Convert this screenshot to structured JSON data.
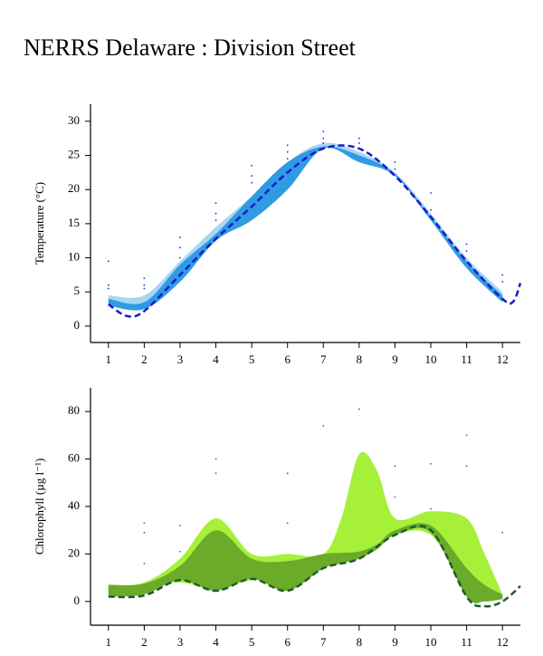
{
  "title": "NERRS Delaware : Division Street",
  "chart_data": [
    {
      "type": "line",
      "ylabel": "Temperature (°C)",
      "xlim": [
        0.5,
        12.5
      ],
      "xticks": [
        1,
        2,
        3,
        4,
        5,
        6,
        7,
        8,
        9,
        10,
        11,
        12
      ],
      "ylim": [
        -2.4,
        32.5
      ],
      "yticks": [
        0,
        5,
        10,
        15,
        20,
        25,
        30
      ],
      "band_x": [
        1,
        2,
        3,
        4,
        5,
        6,
        7,
        8,
        9,
        10,
        11,
        12
      ],
      "bands": [
        {
          "color": "#a9d6f5",
          "upper": [
            4.5,
            4.5,
            9.5,
            14.5,
            19,
            24,
            26.8,
            25.5,
            22.5,
            16.5,
            10,
            5
          ],
          "lower": [
            3,
            2.5,
            7,
            12.5,
            16,
            20.5,
            26,
            24.5,
            22,
            15.5,
            8.5,
            3.5
          ]
        },
        {
          "color": "#2f9be3",
          "upper": [
            4,
            3.5,
            9,
            13.5,
            19,
            24,
            26.3,
            25,
            22.3,
            16,
            9.5,
            4.5
          ],
          "lower": [
            3,
            2.5,
            6.5,
            12.5,
            15.5,
            20,
            26,
            24,
            22,
            15.5,
            8.5,
            3.5
          ]
        }
      ],
      "line": {
        "color": "#1a1acc",
        "x": [
          1,
          1.5,
          2,
          3,
          4,
          5,
          6,
          7,
          8,
          9,
          10,
          11,
          12,
          12.3,
          12.5
        ],
        "values": [
          3.2,
          1.5,
          2.2,
          7.5,
          12.8,
          17.5,
          22.5,
          26,
          26,
          22,
          16,
          9.5,
          4,
          3.6,
          6.3
        ]
      },
      "scatter": {
        "color": "#2233cc",
        "x": [
          1,
          1,
          1,
          2,
          2,
          2,
          3,
          3,
          3,
          4,
          4,
          4,
          5,
          5,
          5,
          6,
          6,
          6,
          7,
          7,
          7,
          8,
          8,
          8,
          9,
          9,
          10,
          10,
          11,
          11,
          12,
          12
        ],
        "values": [
          9.5,
          6,
          5.5,
          7,
          6,
          5.5,
          13,
          11.5,
          10,
          18,
          16.5,
          15.5,
          23.5,
          22,
          21,
          26.5,
          25.5,
          24.5,
          28.5,
          27.5,
          26.8,
          27.5,
          26.8,
          26,
          24,
          23,
          19.5,
          17,
          12,
          11,
          7.5,
          6.5
        ]
      }
    },
    {
      "type": "line",
      "ylabel": "Chlorophyll (µg l⁻¹)",
      "xlim": [
        0.5,
        12.5
      ],
      "xticks": [
        1,
        2,
        3,
        4,
        5,
        6,
        7,
        8,
        9,
        10,
        11,
        12
      ],
      "ylim": [
        -10,
        90
      ],
      "yticks": [
        0,
        20,
        40,
        60,
        80
      ],
      "band_x": [
        1,
        2,
        3,
        4,
        5,
        6,
        7,
        7.5,
        8,
        8.5,
        9,
        10,
        11,
        11.5,
        12
      ],
      "bands": [
        {
          "color": "#a6f03a",
          "upper": [
            7,
            8,
            18,
            35,
            20,
            20,
            20,
            35,
            62,
            55,
            35,
            38,
            35,
            20,
            3
          ],
          "lower": [
            5,
            6,
            8,
            5,
            9,
            8,
            14,
            16,
            18,
            22,
            28,
            28,
            6,
            3,
            2
          ]
        },
        {
          "color": "#6aab2a",
          "upper": [
            7,
            7.5,
            15,
            30,
            18,
            17,
            20,
            20.5,
            21,
            24,
            30,
            32,
            14,
            7,
            3
          ],
          "lower": [
            2,
            3,
            9,
            4.5,
            9.5,
            4.5,
            14,
            16,
            18,
            22,
            28,
            29,
            2,
            0,
            1
          ]
        }
      ],
      "line": {
        "color": "#1f5c2a",
        "x": [
          1,
          2,
          3,
          4,
          5,
          6,
          7,
          8,
          9,
          10,
          11,
          11.5,
          12,
          12.5
        ],
        "values": [
          2,
          2.5,
          9,
          4.5,
          9.5,
          4.5,
          14,
          18,
          28,
          30,
          2,
          -2,
          0,
          6.5
        ]
      },
      "scatter": {
        "color": "#2e6bb0",
        "x": [
          2,
          2,
          2,
          3,
          3,
          4,
          4,
          6,
          6,
          7,
          8,
          9,
          9,
          10,
          10,
          11,
          11,
          12
        ],
        "values": [
          33,
          29,
          16,
          32,
          21,
          60,
          54,
          54,
          33,
          74,
          81,
          57,
          44,
          58,
          39,
          70,
          57,
          29
        ]
      }
    }
  ]
}
